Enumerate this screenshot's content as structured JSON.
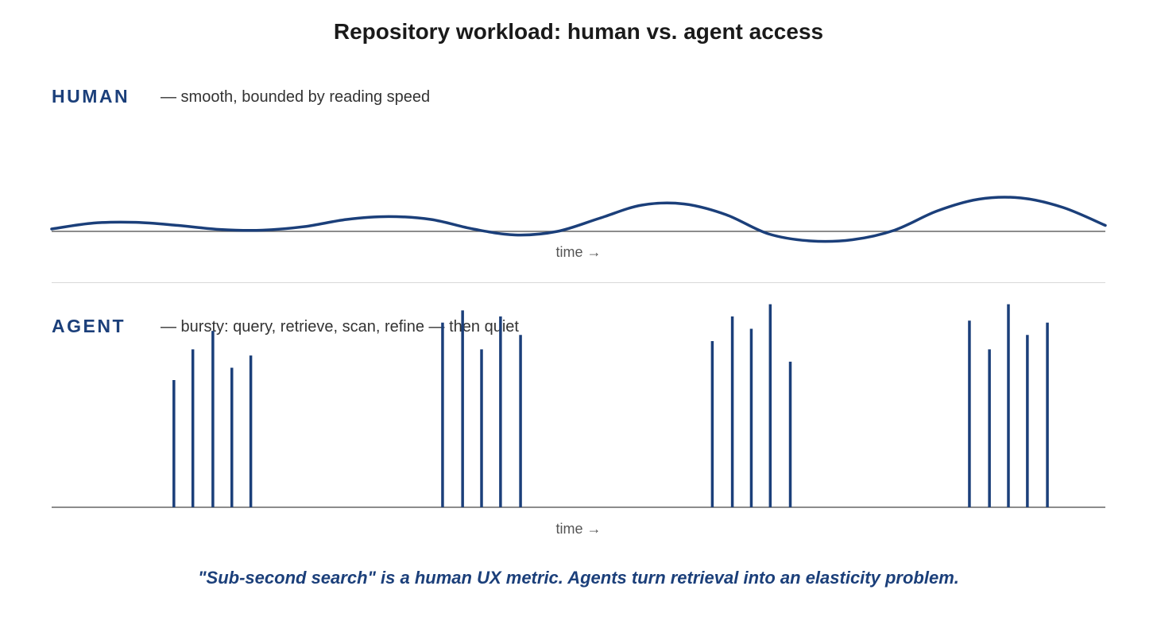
{
  "title": "Repository workload: human vs. agent access",
  "colors": {
    "accent": "#1b3f7a",
    "axis": "#666666"
  },
  "human": {
    "label": "HUMAN",
    "description": "— smooth, bounded by reading speed",
    "axis_label": "time →"
  },
  "agent": {
    "label": "AGENT",
    "description": "— bursty: query, retrieve, scan, refine — then quiet",
    "axis_label": "time →"
  },
  "footer": "\"Sub-second search\" is a human UX metric. Agents turn retrieval into an elasticity problem.",
  "chart_data": [
    {
      "type": "line",
      "series": [
        {
          "x": [
            0,
            4,
            8,
            12,
            16,
            20,
            24,
            28,
            32,
            36,
            40,
            44,
            48,
            52,
            56,
            60,
            64,
            68,
            72,
            76,
            80,
            84,
            88,
            92,
            96,
            100
          ],
          "values": [
            0.1,
            0.35,
            0.38,
            0.25,
            0.08,
            0.05,
            0.2,
            0.5,
            0.62,
            0.5,
            0.1,
            -0.15,
            0.0,
            0.55,
            1.1,
            1.15,
            0.7,
            -0.1,
            -0.4,
            -0.35,
            0.05,
            0.85,
            1.35,
            1.4,
            1.0,
            0.25
          ]
        }
      ],
      "ylim": [
        -1,
        2
      ],
      "xlim": [
        0,
        100
      ]
    },
    {
      "type": "bar",
      "series": [
        {
          "x": [
            11.6,
            13.4,
            15.3,
            17.1,
            18.9,
            37.1,
            39.0,
            40.8,
            42.6,
            44.5,
            62.7,
            64.6,
            66.4,
            68.2,
            70.1,
            87.1,
            89.0,
            90.8,
            92.6,
            94.5
          ],
          "values": [
            0.62,
            0.77,
            0.86,
            0.68,
            0.74,
            0.9,
            0.96,
            0.77,
            0.93,
            0.84,
            0.81,
            0.93,
            0.87,
            0.99,
            0.71,
            0.91,
            0.77,
            0.99,
            0.84,
            0.9
          ]
        }
      ],
      "ylim": [
        0,
        1
      ],
      "xlim": [
        0,
        100
      ]
    }
  ]
}
